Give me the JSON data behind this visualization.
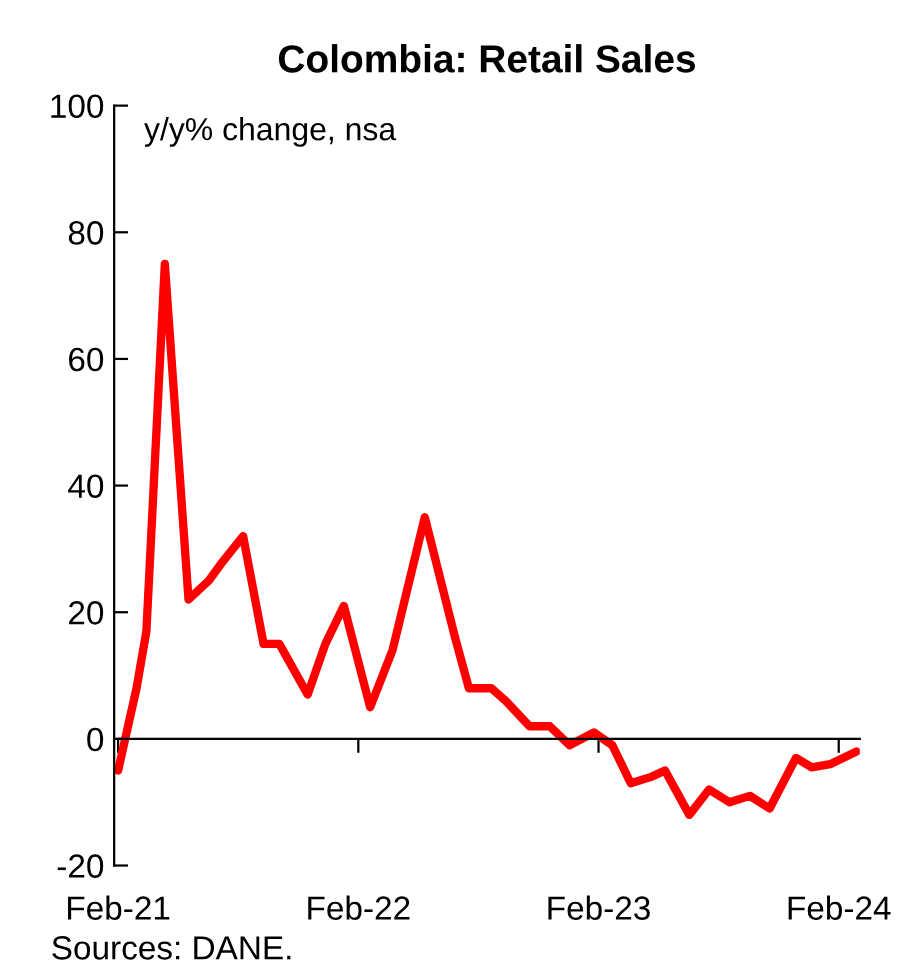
{
  "chart_data": {
    "type": "line",
    "title": "Colombia: Retail Sales",
    "ylabel": "y/y% change, nsa",
    "annotations": [
      "Sources: DANE."
    ],
    "x": [
      "2021-02-01",
      "2021-03-01",
      "2021-03-16",
      "2021-04-13",
      "2021-05-19",
      "2021-06-19",
      "2021-07-10",
      "2021-08-10",
      "2021-09-10",
      "2021-10-04",
      "2021-11-16",
      "2021-12-13",
      "2022-01-10",
      "2022-02-19",
      "2022-03-25",
      "2022-05-13",
      "2022-06-28",
      "2022-07-19",
      "2022-08-22",
      "2022-09-13",
      "2022-10-19",
      "2022-11-19",
      "2022-12-19",
      "2023-01-25",
      "2023-02-22",
      "2023-03-22",
      "2023-04-22",
      "2023-05-13",
      "2023-06-19",
      "2023-07-19",
      "2023-08-19",
      "2023-09-19",
      "2023-10-19",
      "2023-11-28",
      "2023-12-22",
      "2024-01-19",
      "2024-02-28"
    ],
    "series": [
      {
        "color": "#ff0000",
        "values": [
          -5,
          8,
          17,
          75,
          22,
          25,
          28,
          32,
          15,
          15,
          7,
          15,
          21,
          5,
          14,
          35,
          16,
          8,
          8,
          6,
          2,
          2,
          -1,
          1,
          -1,
          -7,
          -6,
          -5,
          -12,
          -8,
          -10,
          -9,
          -11,
          -3,
          -4.5,
          -4,
          -2
        ]
      }
    ],
    "xlim": [
      "2021-01-26",
      "2024-03-04"
    ],
    "xticks": [
      {
        "value": "2021-02-01",
        "label": "Feb-21"
      },
      {
        "value": "2022-02-01",
        "label": "Feb-22"
      },
      {
        "value": "2023-02-01",
        "label": "Feb-23"
      },
      {
        "value": "2024-02-01",
        "label": "Feb-24"
      }
    ],
    "ylim": [
      -20,
      100
    ],
    "yticks": [
      -20,
      0,
      20,
      40,
      60,
      80,
      100
    ],
    "ref_lines": [
      {
        "axis": "y",
        "value": 0,
        "color": "#000000"
      }
    ],
    "grid": false,
    "legend": false,
    "marker": "none",
    "line_style": "solid"
  }
}
